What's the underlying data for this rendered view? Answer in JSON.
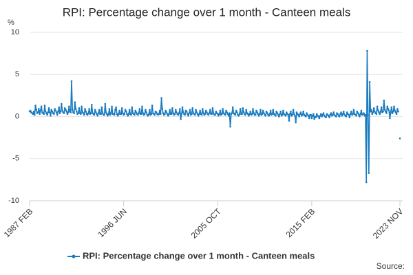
{
  "chart_data": {
    "type": "line",
    "title": "RPI: Percentage change over 1 month - Canteen meals",
    "y_label": "%",
    "source": "Source:",
    "ylim": [
      -10,
      10
    ],
    "yticks": [
      -10,
      -5,
      0,
      5,
      10
    ],
    "grid": true,
    "legend": "bottom",
    "categories": [
      "1987 FEB",
      null,
      null,
      null,
      null,
      null,
      null,
      null,
      null,
      null,
      null,
      null,
      null,
      null,
      null,
      null,
      null,
      null,
      null,
      null,
      null,
      null,
      null,
      null,
      null,
      null,
      null,
      null,
      null,
      null,
      null,
      null,
      null,
      null,
      null,
      null,
      null,
      null,
      null,
      null,
      null,
      null,
      null,
      null,
      null,
      null,
      null,
      null,
      null,
      null,
      null,
      null,
      null,
      null,
      null,
      null,
      null,
      null,
      null,
      null,
      null,
      null,
      null,
      null,
      null,
      null,
      null,
      null,
      null,
      null,
      null,
      null,
      null,
      null,
      null,
      null,
      null,
      null,
      null,
      null,
      null,
      null,
      null,
      null,
      null,
      null,
      null,
      null,
      null,
      null,
      null,
      null,
      null,
      null,
      null,
      null,
      null,
      null,
      null,
      null,
      null,
      null,
      null,
      null,
      null,
      null,
      null,
      null,
      null,
      null,
      null,
      null,
      "1996 JUN",
      null,
      null,
      null,
      null,
      null,
      null,
      null,
      null,
      null,
      null,
      null,
      null,
      null,
      null,
      null,
      null,
      null,
      null,
      null,
      null,
      null,
      null,
      null,
      null,
      null,
      null,
      null,
      null,
      null,
      null,
      null,
      null,
      null,
      null,
      null,
      null,
      null,
      null,
      null,
      null,
      null,
      null,
      null,
      null,
      null,
      null,
      null,
      null,
      null,
      null,
      null,
      null,
      null,
      null,
      null,
      null,
      null,
      null,
      null,
      null,
      null,
      null,
      null,
      null,
      null,
      null,
      null,
      null,
      null,
      null,
      null,
      null,
      null,
      null,
      null,
      null,
      null,
      null,
      null,
      null,
      null,
      null,
      null,
      null,
      null,
      null,
      null,
      null,
      null,
      null,
      null,
      null,
      null,
      null,
      null,
      null,
      null,
      null,
      null,
      null,
      null,
      null,
      null,
      null,
      null,
      null,
      null,
      null,
      null,
      null,
      null,
      "2005 OCT",
      null,
      null,
      null,
      null,
      null,
      null,
      null,
      null,
      null,
      null,
      null,
      null,
      null,
      null,
      null,
      null,
      null,
      null,
      null,
      null,
      null,
      null,
      null,
      null,
      null,
      null,
      null,
      null,
      null,
      null,
      null,
      null,
      null,
      null,
      null,
      null,
      null,
      null,
      null,
      null,
      null,
      null,
      null,
      null,
      null,
      null,
      null,
      null,
      null,
      null,
      null,
      null,
      null,
      null,
      null,
      null,
      null,
      null,
      null,
      null,
      null,
      null,
      null,
      null,
      null,
      null,
      null,
      null,
      null,
      null,
      null,
      null,
      null,
      null,
      null,
      null,
      null,
      null,
      null,
      null,
      null,
      null,
      null,
      null,
      null,
      null,
      null,
      null,
      null,
      null,
      null,
      null,
      null,
      null,
      null,
      null,
      null,
      null,
      null,
      null,
      null,
      null,
      null,
      null,
      null,
      null,
      null,
      null,
      null,
      null,
      null,
      "2015 FEB",
      null,
      null,
      null,
      null,
      null,
      null,
      null,
      null,
      null,
      null,
      null,
      null,
      null,
      null,
      null,
      null,
      null,
      null,
      null,
      null,
      null,
      null,
      null,
      null,
      null,
      null,
      null,
      null,
      null,
      null,
      null,
      null,
      null,
      null,
      null,
      null,
      null,
      null,
      null,
      null,
      null,
      null,
      null,
      null,
      null,
      null,
      null,
      null,
      null,
      null,
      null,
      null,
      null,
      null,
      null,
      null,
      null,
      null,
      null,
      null,
      null,
      null,
      null,
      null,
      null,
      null,
      null,
      null,
      null,
      null,
      null,
      null,
      null,
      null,
      null,
      null,
      null,
      null,
      null,
      null,
      null,
      null,
      null,
      null,
      null,
      null,
      null,
      null,
      null,
      null,
      null,
      null,
      null,
      null,
      null,
      null,
      null,
      null,
      null,
      null,
      null,
      null,
      null,
      null,
      "2023 NOV"
    ],
    "series": [
      {
        "name": "RPI: Percentage change over 1 month - Canteen meals",
        "color": "#1a7bbf",
        "values": [
          0.6,
          0.7,
          0.5,
          0.4,
          0.3,
          0.6,
          0.2,
          1.3,
          0.8,
          0.4,
          0.5,
          0.9,
          0.3,
          0.7,
          1.2,
          0.5,
          0.4,
          0.3,
          1.3,
          0.6,
          0.4,
          0.2,
          0.5,
          1.0,
          0.5,
          0.1,
          0.8,
          0.6,
          0.4,
          0.3,
          0.9,
          0.7,
          0.5,
          0.2,
          0.6,
          1.1,
          0.4,
          0.6,
          1.5,
          0.7,
          0.5,
          0.4,
          1.0,
          0.8,
          0.6,
          0.3,
          0.5,
          1.2,
          0.6,
          0.5,
          4.2,
          0.8,
          0.5,
          0.4,
          1.7,
          0.9,
          0.6,
          0.3,
          0.4,
          1.0,
          0.4,
          0.3,
          1.2,
          0.5,
          0.4,
          0.2,
          0.9,
          0.6,
          0.3,
          0.2,
          0.4,
          0.9,
          0.3,
          0.4,
          1.4,
          0.4,
          0.3,
          0.2,
          0.8,
          0.5,
          0.3,
          0.1,
          0.4,
          0.8,
          0.3,
          0.3,
          1.1,
          0.4,
          0.2,
          0.2,
          1.5,
          0.5,
          0.3,
          0.1,
          0.3,
          0.9,
          0.2,
          0.4,
          1.2,
          0.3,
          0.3,
          0.2,
          0.8,
          1.1,
          0.3,
          0.1,
          0.3,
          0.7,
          0.3,
          0.3,
          1.0,
          0.4,
          0.2,
          0.3,
          0.8,
          0.6,
          0.3,
          0.1,
          0.3,
          0.8,
          0.3,
          0.2,
          1.1,
          0.4,
          0.3,
          0.2,
          0.7,
          0.5,
          0.3,
          0.2,
          0.4,
          0.9,
          0.3,
          0.3,
          1.2,
          0.4,
          0.2,
          0.3,
          0.8,
          0.5,
          0.2,
          0.1,
          0.3,
          0.8,
          0.2,
          0.3,
          1.3,
          0.4,
          0.3,
          0.2,
          0.6,
          0.5,
          0.3,
          0.2,
          0.3,
          0.7,
          0.3,
          2.2,
          0.9,
          0.4,
          0.2,
          0.3,
          0.7,
          0.5,
          0.3,
          0.1,
          0.3,
          0.8,
          0.3,
          0.3,
          1.0,
          0.4,
          0.2,
          0.3,
          0.8,
          0.5,
          0.3,
          0.2,
          0.4,
          0.9,
          -0.3,
          0.3,
          1.1,
          0.5,
          0.3,
          0.2,
          0.7,
          0.6,
          0.3,
          0.1,
          0.4,
          0.8,
          0.2,
          0.3,
          1.0,
          0.4,
          0.3,
          0.2,
          0.8,
          0.5,
          0.3,
          0.1,
          0.3,
          0.7,
          0.3,
          0.2,
          0.9,
          0.4,
          0.2,
          0.3,
          0.7,
          0.5,
          0.3,
          0.2,
          0.4,
          0.8,
          0.3,
          0.3,
          1.0,
          0.4,
          0.2,
          0.2,
          0.6,
          0.4,
          0.3,
          0.1,
          0.3,
          0.7,
          0.2,
          0.3,
          0.9,
          0.4,
          0.3,
          0.2,
          0.7,
          0.5,
          0.3,
          0.1,
          0.4,
          -1.2,
          0.3,
          0.4,
          1.1,
          0.4,
          0.3,
          0.2,
          0.7,
          0.5,
          0.2,
          0.1,
          0.3,
          0.9,
          0.3,
          0.3,
          1.0,
          0.5,
          0.3,
          0.2,
          0.8,
          0.4,
          0.3,
          0.1,
          0.3,
          0.6,
          0.2,
          0.3,
          0.9,
          0.4,
          0.2,
          0.2,
          0.7,
          0.5,
          0.3,
          0.1,
          0.3,
          0.8,
          0.2,
          0.3,
          0.7,
          0.4,
          0.2,
          0.1,
          0.6,
          0.4,
          0.2,
          0.1,
          0.3,
          0.7,
          0.2,
          0.3,
          0.8,
          0.3,
          0.2,
          0.1,
          0.6,
          0.4,
          0.2,
          0.0,
          0.3,
          0.6,
          0.1,
          0.2,
          0.7,
          0.3,
          0.2,
          0.1,
          0.5,
          0.3,
          0.2,
          -0.5,
          0.3,
          0.6,
          0.1,
          0.2,
          0.8,
          0.3,
          0.1,
          -0.7,
          0.5,
          0.3,
          0.2,
          0.0,
          0.3,
          0.5,
          0.1,
          0.2,
          0.6,
          0.2,
          0.1,
          0.0,
          0.4,
          0.2,
          0.1,
          -0.2,
          0.2,
          0.2,
          -0.2,
          0.1,
          0.3,
          -0.3,
          0.0,
          -0.1,
          0.3,
          0.1,
          0.0,
          -0.2,
          0.1,
          0.3,
          0.0,
          0.2,
          0.4,
          0.1,
          0.0,
          -0.1,
          0.3,
          0.2,
          0.1,
          -0.1,
          0.2,
          0.4,
          0.1,
          0.2,
          0.5,
          0.2,
          0.1,
          0.0,
          0.4,
          0.3,
          0.1,
          0.0,
          0.3,
          0.5,
          0.1,
          0.3,
          0.6,
          0.2,
          0.1,
          0.0,
          0.5,
          0.3,
          0.2,
          -0.1,
          0.3,
          0.6,
          0.2,
          0.3,
          0.8,
          0.3,
          0.2,
          0.1,
          0.6,
          0.4,
          0.2,
          0.0,
          0.3,
          0.7,
          0.2,
          0.3,
          0.4,
          0.1,
          0.2,
          -7.8,
          7.8,
          0.2,
          -6.7,
          4.1,
          0.6,
          0.8,
          0.3,
          0.5,
          1.0,
          0.6,
          0.4,
          0.3,
          1.2,
          0.7,
          0.5,
          0.3,
          0.6,
          1.1,
          0.5,
          0.6,
          1.9,
          0.8,
          0.6,
          0.4,
          1.2,
          0.9,
          0.7,
          -0.2,
          0.5,
          1.1,
          0.4,
          0.6,
          1.2,
          0.7,
          0.5,
          0.3,
          0.9,
          0.6,
          null,
          -2.6
        ]
      }
    ]
  }
}
